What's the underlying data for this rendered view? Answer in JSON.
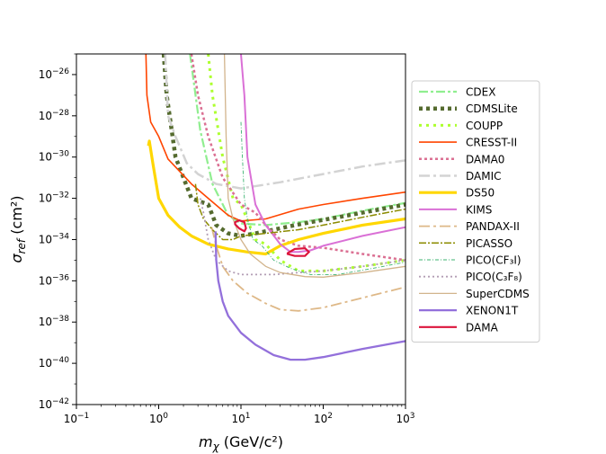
{
  "chart_data": {
    "type": "line",
    "xlabel": "m_χ (GeV/c²)",
    "ylabel": "σ_ref (cm²)",
    "x_scale": "log",
    "y_scale": "log",
    "xlim": [
      0.1,
      1000
    ],
    "ylim": [
      1e-42,
      1e-25
    ],
    "grid": false,
    "legend_position": "right",
    "x_ticks": [
      {
        "value": 0.1,
        "base": "10",
        "exp": "−1"
      },
      {
        "value": 1,
        "base": "10",
        "exp": "0"
      },
      {
        "value": 10,
        "base": "10",
        "exp": "1"
      },
      {
        "value": 100,
        "base": "10",
        "exp": "2"
      },
      {
        "value": 1000,
        "base": "10",
        "exp": "3"
      }
    ],
    "y_ticks": [
      {
        "value": 1e-26,
        "base": "10",
        "exp": "−26"
      },
      {
        "value": 1e-28,
        "base": "10",
        "exp": "−28"
      },
      {
        "value": 1e-30,
        "base": "10",
        "exp": "−30"
      },
      {
        "value": 1e-32,
        "base": "10",
        "exp": "−32"
      },
      {
        "value": 1e-34,
        "base": "10",
        "exp": "−34"
      },
      {
        "value": 1e-36,
        "base": "10",
        "exp": "−36"
      },
      {
        "value": 1e-38,
        "base": "10",
        "exp": "−38"
      },
      {
        "value": 1e-40,
        "base": "10",
        "exp": "−40"
      },
      {
        "value": 1e-42,
        "base": "10",
        "exp": "−42"
      }
    ],
    "series": [
      {
        "name": "CDEX",
        "color": "#90ee90",
        "dash": "10,3,3,3",
        "width": 2.2,
        "x": [
          2.4,
          2.7,
          3.2,
          4.5,
          7,
          10,
          20,
          50,
          100,
          300,
          1000
        ],
        "y": [
          1e-25,
          3e-27,
          2e-29,
          5e-32,
          1.5e-33,
          6e-34,
          5e-34,
          7e-34,
          1e-33,
          2.5e-33,
          6e-33
        ]
      },
      {
        "name": "CDMSLite",
        "color": "#556b2f",
        "dash": "4,4",
        "width": 4.5,
        "x": [
          1.15,
          1.25,
          1.6,
          2.5,
          4,
          5,
          7,
          10,
          15,
          25,
          40,
          70,
          150,
          400,
          1000
        ],
        "y": [
          1e-25,
          1e-27,
          1e-30,
          1e-32,
          5e-33,
          5e-34,
          2e-34,
          1.5e-34,
          2e-34,
          3e-34,
          4.5e-34,
          7e-34,
          1.2e-33,
          2.5e-33,
          5e-33
        ]
      },
      {
        "name": "COUPP",
        "color": "#adff2f",
        "dash": "3,5",
        "width": 3,
        "x": [
          4,
          4.5,
          6,
          8,
          10,
          15,
          20,
          30,
          50,
          100,
          300,
          1000
        ],
        "y": [
          1e-25,
          1e-27,
          1e-30,
          1e-32,
          5e-33,
          1e-34,
          6e-35,
          1e-35,
          3e-36,
          3e-36,
          5e-36,
          1e-35
        ]
      },
      {
        "name": "CRESST-II",
        "color": "#ff4500",
        "dash": "",
        "width": 1.6,
        "x": [
          0.7,
          0.72,
          0.8,
          1.0,
          1.3,
          1.8,
          2.5,
          4,
          7,
          10,
          20,
          50,
          100,
          300,
          1000
        ],
        "y": [
          1e-25,
          1e-27,
          5e-29,
          1e-29,
          8e-31,
          2e-31,
          5e-32,
          1e-32,
          1.5e-33,
          8e-34,
          1e-33,
          3e-33,
          5e-33,
          1e-32,
          2e-32
        ]
      },
      {
        "name": "DAMA0",
        "color": "#db7093",
        "dash": "3,3",
        "width": 2.5,
        "x": [
          2.5,
          3,
          4,
          6,
          10,
          15,
          20,
          30,
          50,
          100,
          300,
          1000
        ],
        "y": [
          1e-25,
          1e-27,
          1e-29,
          1e-31,
          5e-33,
          2e-33,
          5e-34,
          1e-34,
          5e-35,
          4e-35,
          2e-35,
          1e-35
        ]
      },
      {
        "name": "DAMIC",
        "color": "#d3d3d3",
        "dash": "12,4,3,4",
        "width": 2.5,
        "x": [
          1.2,
          1.3,
          1.6,
          2.2,
          3,
          5,
          10,
          30,
          100,
          300,
          1000
        ],
        "y": [
          1e-25,
          1e-28,
          1e-29,
          5e-31,
          1.5e-31,
          5e-32,
          3e-32,
          6e-32,
          1.5e-31,
          3.5e-31,
          7e-31
        ]
      },
      {
        "name": "DS50",
        "color": "#ffd700",
        "dash": "",
        "width": 3.2,
        "x": [
          0.75,
          0.77,
          0.85,
          1.0,
          1.3,
          1.8,
          2.5,
          4,
          7,
          12,
          20,
          30,
          50,
          100,
          300,
          1000
        ],
        "y": [
          3.5e-30,
          6e-30,
          5e-31,
          1e-32,
          1.5e-33,
          4e-34,
          1.5e-34,
          6e-35,
          3.5e-35,
          2.5e-35,
          2e-35,
          5e-35,
          1e-34,
          2e-34,
          5e-34,
          1e-33
        ]
      },
      {
        "name": "KIMS",
        "color": "#da70d6",
        "dash": "",
        "width": 2,
        "x": [
          10,
          11,
          12,
          15,
          20,
          30,
          40,
          50,
          70,
          100,
          300,
          1000
        ],
        "y": [
          1e-25,
          1e-27,
          1e-30,
          5e-33,
          5e-34,
          6e-35,
          2.5e-35,
          2.5e-35,
          3e-35,
          5e-35,
          1.5e-34,
          4e-34
        ]
      },
      {
        "name": "PANDAX-II",
        "color": "#deb887",
        "dash": "12,4,3,4",
        "width": 1.8,
        "x": [
          4.4,
          4.6,
          5,
          6,
          8,
          12,
          20,
          30,
          50,
          100,
          300,
          1000
        ],
        "y": [
          4e-34,
          2e-34,
          5e-35,
          5e-36,
          1e-36,
          2.5e-37,
          8e-38,
          4e-38,
          3.5e-38,
          5e-38,
          1.5e-37,
          5e-37
        ]
      },
      {
        "name": "PICASSO",
        "color": "#8b8b00",
        "dash": "8,2,2,2",
        "width": 1.5,
        "x": [
          2.8,
          3,
          3.5,
          4.5,
          6,
          8,
          10,
          20,
          50,
          100,
          300,
          1000
        ],
        "y": [
          5e-32,
          5e-33,
          1e-33,
          3e-34,
          1e-34,
          1e-34,
          1.5e-34,
          2e-34,
          3e-34,
          5e-34,
          1.2e-33,
          3e-33
        ]
      },
      {
        "name": "PICO(CF₃I)",
        "color": "#3cb371",
        "dash": "4,2,1,2",
        "width": 0.9,
        "x": [
          10,
          10.4,
          11,
          12,
          14,
          18,
          25,
          40,
          70,
          150,
          400,
          1000
        ],
        "y": [
          5e-29,
          1e-30,
          1e-32,
          1e-33,
          1e-34,
          5e-35,
          1e-35,
          4e-36,
          2e-36,
          2e-36,
          4e-36,
          8e-36
        ]
      },
      {
        "name": "PICO(C₃F₈)",
        "color": "#b39eb5",
        "dash": "2,3",
        "width": 1.8,
        "x": [
          3.2,
          3.5,
          4,
          5,
          7,
          10,
          15,
          25,
          50,
          100,
          300,
          1000
        ],
        "y": [
          1e-32,
          2e-33,
          1e-34,
          1e-35,
          3e-36,
          2e-36,
          2e-36,
          2e-36,
          2.5e-36,
          3e-36,
          5e-36,
          1e-35
        ]
      },
      {
        "name": "SuperCDMS",
        "color": "#d2b48c",
        "dash": "",
        "width": 1.3,
        "x": [
          6.3,
          6.6,
          7,
          8,
          10,
          13,
          20,
          30,
          60,
          100,
          300,
          1000
        ],
        "y": [
          1e-25,
          1e-29,
          1e-32,
          1e-33,
          1e-34,
          2e-35,
          5e-36,
          2.5e-36,
          1.6e-36,
          1.5e-36,
          2.5e-36,
          5e-36
        ]
      },
      {
        "name": "XENON1T",
        "color": "#9370db",
        "dash": "",
        "width": 2.3,
        "x": [
          4.9,
          5,
          5.3,
          6,
          7,
          10,
          15,
          25,
          40,
          60,
          100,
          300,
          1000
        ],
        "y": [
          2.5e-34,
          1e-35,
          1e-36,
          1e-37,
          2e-38,
          3e-39,
          8e-40,
          2.5e-40,
          1.5e-40,
          1.5e-40,
          2e-40,
          5e-40,
          1.2e-39
        ]
      },
      {
        "name": "DAMA",
        "color": "#dc143c",
        "dash": "",
        "width": 2.2,
        "closed": true,
        "x": [
          8.5,
          9.5,
          11,
          11.5,
          11,
          9.5,
          8.5
        ],
        "y": [
          7e-34,
          8.5e-34,
          7e-34,
          3.5e-34,
          2.5e-34,
          3.5e-34,
          5.5e-34
        ],
        "x2": [
          37,
          45,
          60,
          67,
          60,
          45,
          37
        ],
        "y2": [
          2.2e-35,
          3.5e-35,
          3.8e-35,
          2.5e-35,
          1.6e-35,
          1.6e-35,
          2e-35
        ]
      }
    ]
  }
}
